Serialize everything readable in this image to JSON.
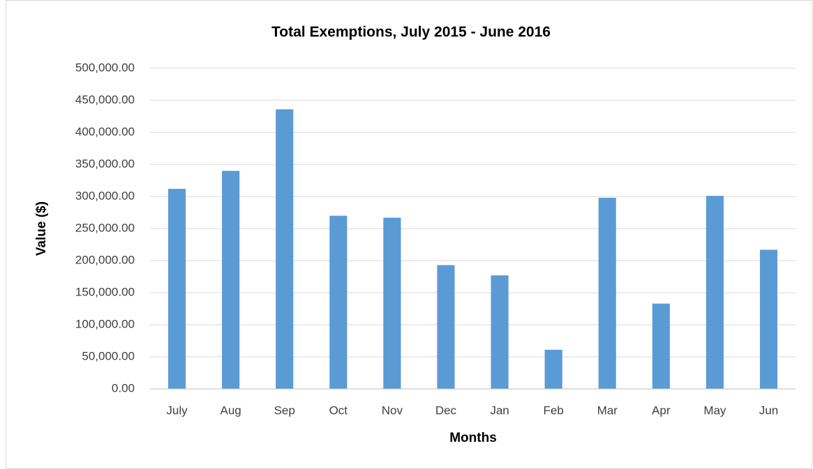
{
  "chart_data": {
    "type": "bar",
    "title": "Total Exemptions, July 2015 - June 2016",
    "x_label": "Months",
    "y_label": "Value ($)",
    "categories": [
      "July",
      "Aug",
      "Sep",
      "Oct",
      "Nov",
      "Dec",
      "Jan",
      "Feb",
      "Mar",
      "Apr",
      "May",
      "Jun"
    ],
    "values": [
      312000,
      340000,
      436000,
      270000,
      267000,
      193000,
      177000,
      61000,
      298000,
      133000,
      301000,
      217000
    ],
    "color": "#5b9bd5",
    "ylim": [
      0,
      500000
    ],
    "yticks": [
      {
        "value": 0,
        "label": "0.00"
      },
      {
        "value": 50000,
        "label": "50,000.00"
      },
      {
        "value": 100000,
        "label": "100,000.00"
      },
      {
        "value": 150000,
        "label": "150,000.00"
      },
      {
        "value": 200000,
        "label": "200,000.00"
      },
      {
        "value": 250000,
        "label": "250,000.00"
      },
      {
        "value": 300000,
        "label": "300,000.00"
      },
      {
        "value": 350000,
        "label": "350,000.00"
      },
      {
        "value": 400000,
        "label": "400,000.00"
      },
      {
        "value": 450000,
        "label": "450,000.00"
      },
      {
        "value": 500000,
        "label": "500,000.00"
      }
    ],
    "grid": true
  }
}
